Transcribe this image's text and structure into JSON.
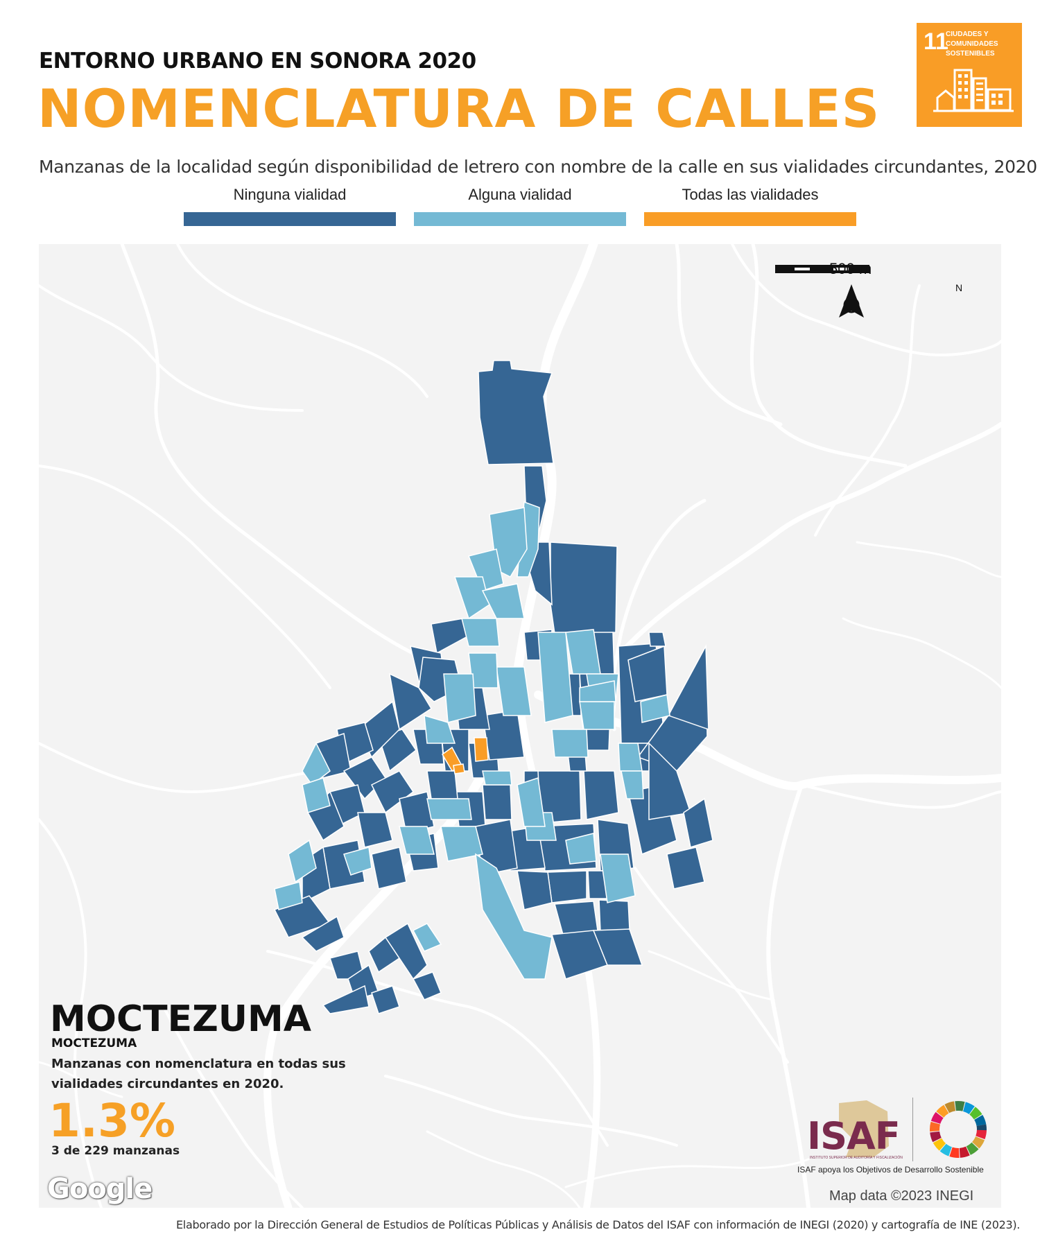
{
  "header": {
    "kicker": "ENTORNO URBANO EN SONORA 2020",
    "title": "NOMENCLATURA DE CALLES",
    "description": "Manzanas de la localidad según disponibilidad de letrero con nombre de la calle en sus vialidades circundantes, 2020"
  },
  "sdg_badge": {
    "number": "11",
    "text": "CIUDADES Y COMUNIDADES SOSTENIBLES",
    "color": "#f99d26"
  },
  "legend": [
    {
      "label": "Ninguna vialidad",
      "color": "#366694"
    },
    {
      "label": "Alguna vialidad",
      "color": "#74b9d4"
    },
    {
      "label": "Todas las vialidades",
      "color": "#f99d26"
    }
  ],
  "map": {
    "scale_label": "500 m",
    "north_label": "N",
    "attribution": "Map data ©2023 INEGI",
    "google_label": "Google",
    "background_color": "#f3f3f3",
    "road_color": "#ffffff"
  },
  "locality": {
    "name": "MOCTEZUMA",
    "municipality": "MOCTEZUMA",
    "stat_caption": "Manzanas con nomenclatura en todas sus vialidades circundantes en 2020.",
    "stat_value": "1.3%",
    "stat_count": "3 de 229 manzanas"
  },
  "isaf": {
    "name": "ISAF",
    "fullname": "INSTITUTO SUPERIOR DE AUDITORÍA Y FISCALIZACIÓN",
    "caption": "ISAF apoya los Objetivos de Desarrollo Sostenible",
    "name_color": "#7a2b4d"
  },
  "footer": "Elaborado por la Dirección General de Estudios de Políticas Públicas y Análisis de Datos del ISAF con información de INEGI (2020) y cartografía de INE (2023)."
}
